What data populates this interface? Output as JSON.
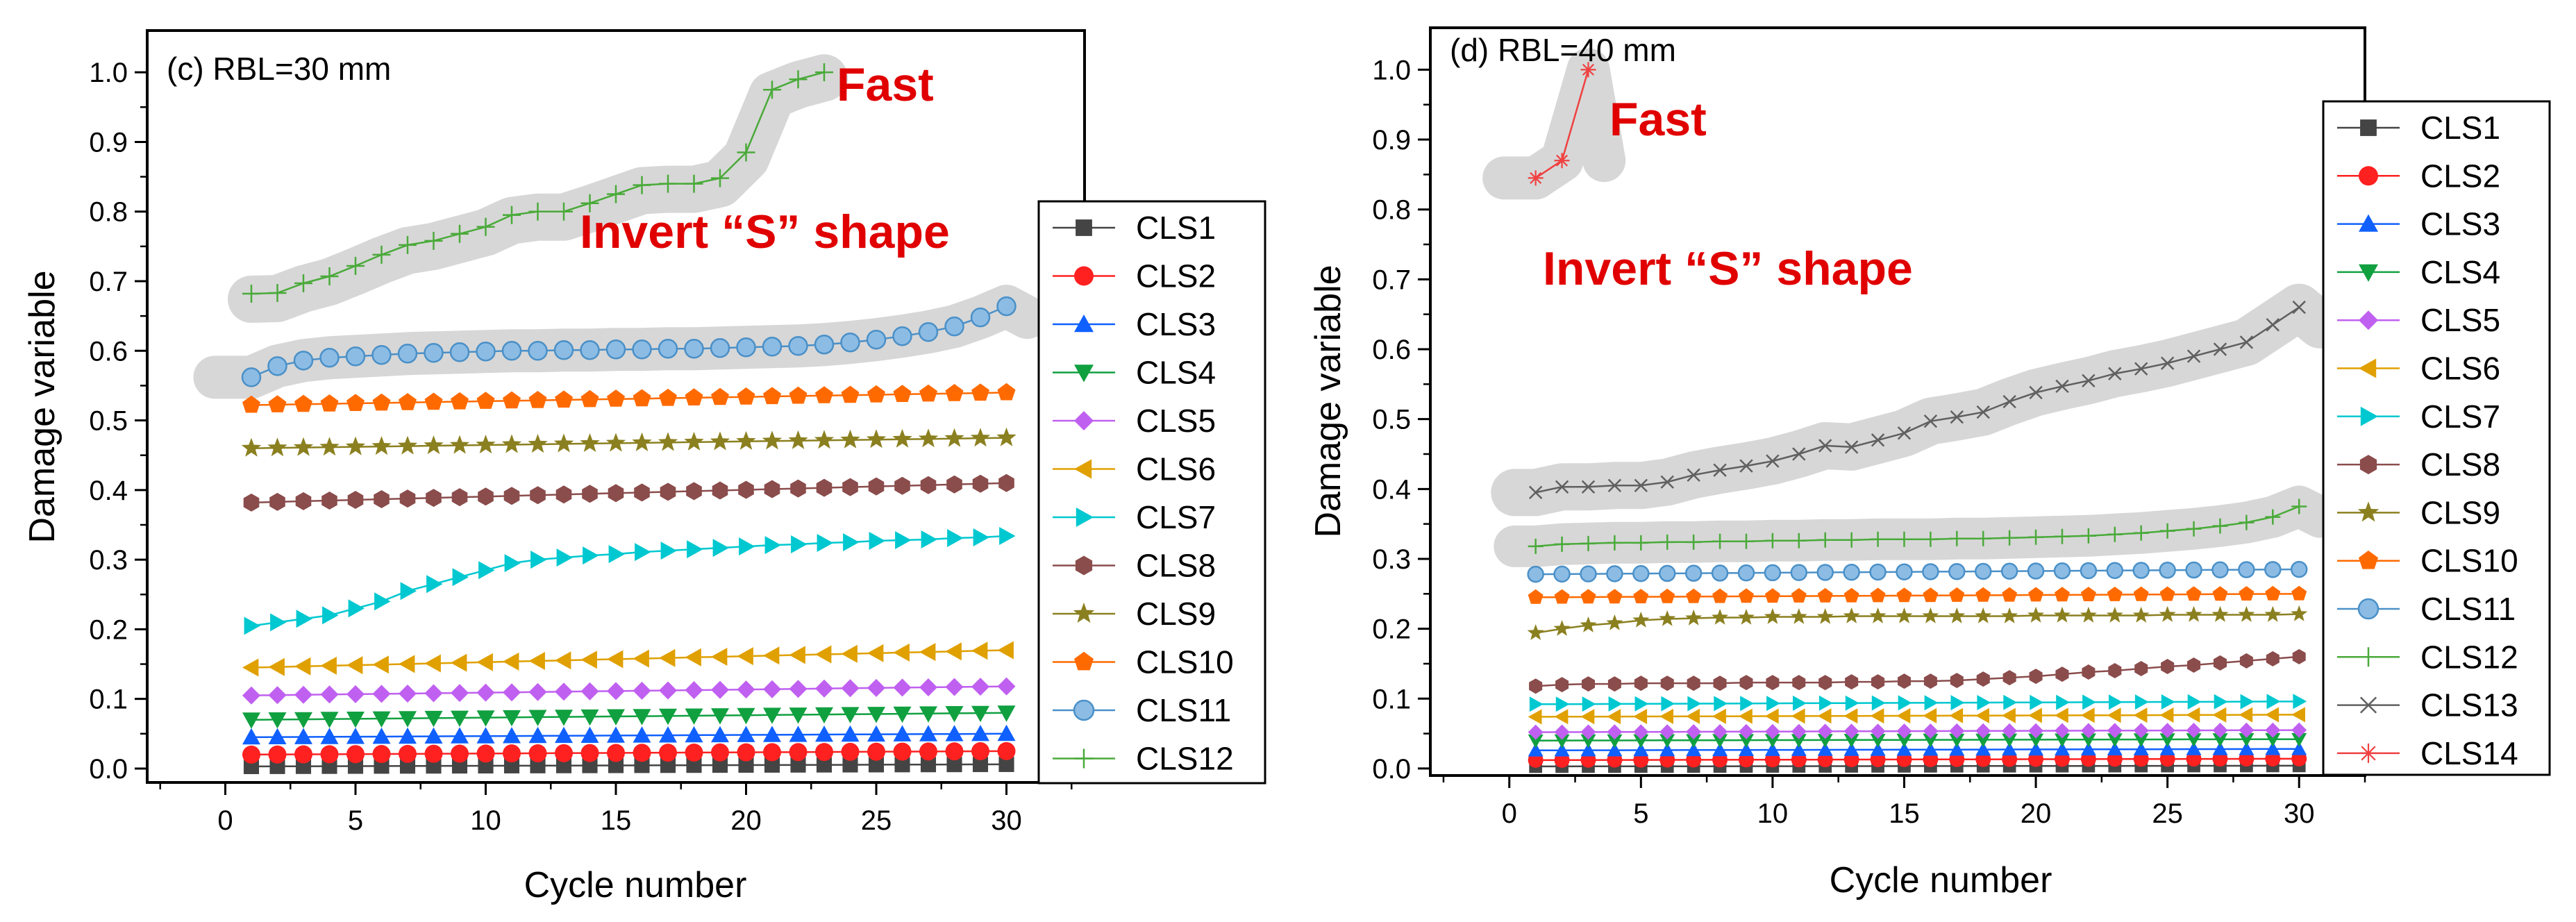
{
  "panels": [
    {
      "panel_text": "(c) RBL=30 mm",
      "annotation_fast": "Fast",
      "annotation_invert": "Invert “S” shape"
    },
    {
      "panel_text": "(d) RBL=40 mm",
      "annotation_fast": "Fast",
      "annotation_invert": "Invert “S” shape"
    }
  ],
  "chart_data": [
    {
      "type": "line",
      "title": "(c) RBL=30 mm",
      "xlabel": "Cycle number",
      "ylabel": "Damage variable",
      "xlim": [
        -3,
        33
      ],
      "ylim": [
        -0.02,
        1.06
      ],
      "xticks": [
        0,
        5,
        10,
        15,
        20,
        25,
        30
      ],
      "yticks": [
        0.0,
        0.1,
        0.2,
        0.3,
        0.4,
        0.5,
        0.6,
        0.7,
        0.8,
        0.9,
        1.0
      ],
      "legend_position": "right",
      "series": [
        {
          "name": "CLS1",
          "marker": "square",
          "color": "#444444",
          "start": 0.003,
          "end": 0.006
        },
        {
          "name": "CLS2",
          "marker": "circle",
          "color": "#ff2020",
          "start": 0.02,
          "end": 0.025
        },
        {
          "name": "CLS3",
          "marker": "triangle-up",
          "color": "#1060ff",
          "start": 0.045,
          "end": 0.05
        },
        {
          "name": "CLS4",
          "marker": "triangle-down",
          "color": "#10a040",
          "start": 0.07,
          "end": 0.08
        },
        {
          "name": "CLS5",
          "marker": "diamond",
          "color": "#c060f0",
          "start": 0.105,
          "end": 0.118
        },
        {
          "name": "CLS6",
          "marker": "triangle-left",
          "color": "#e0a000",
          "start": 0.145,
          "end": 0.17
        },
        {
          "name": "CLS7",
          "marker": "triangle-right",
          "color": "#00c8d0",
          "values": [
            0.205,
            0.21,
            0.215,
            0.22,
            0.23,
            0.24,
            0.255,
            0.265,
            0.275,
            0.285,
            0.295,
            0.3,
            0.303,
            0.306,
            0.308,
            0.311,
            0.313,
            0.315,
            0.317,
            0.319,
            0.321,
            0.322,
            0.324,
            0.325,
            0.327,
            0.328,
            0.329,
            0.331,
            0.332,
            0.334
          ]
        },
        {
          "name": "CLS8",
          "marker": "hexagon",
          "color": "#8b4c4c",
          "start": 0.382,
          "end": 0.41
        },
        {
          "name": "CLS9",
          "marker": "star",
          "color": "#8b8020",
          "start": 0.46,
          "end": 0.475
        },
        {
          "name": "CLS10",
          "marker": "pentagon",
          "color": "#ff6a00",
          "start": 0.522,
          "end": 0.54
        },
        {
          "name": "CLS11",
          "marker": "sphere",
          "color": "#4a90c8",
          "values": [
            0.562,
            0.578,
            0.586,
            0.59,
            0.592,
            0.594,
            0.596,
            0.597,
            0.598,
            0.599,
            0.6,
            0.6,
            0.601,
            0.601,
            0.602,
            0.602,
            0.603,
            0.603,
            0.604,
            0.605,
            0.606,
            0.607,
            0.609,
            0.612,
            0.616,
            0.621,
            0.627,
            0.635,
            0.648,
            0.664
          ]
        },
        {
          "name": "CLS12",
          "marker": "plus",
          "color": "#4aaa3a",
          "values": [
            0.682,
            0.683,
            0.697,
            0.707,
            0.722,
            0.738,
            0.752,
            0.758,
            0.768,
            0.778,
            0.795,
            0.8,
            0.8,
            0.812,
            0.825,
            0.838,
            0.84,
            0.84,
            0.848,
            0.885,
            0.975,
            0.99,
            1.0
          ]
        }
      ]
    },
    {
      "type": "line",
      "title": "(d) RBL=40 mm",
      "xlabel": "Cycle number",
      "ylabel": "Damage variable",
      "xlim": [
        -3,
        32.5
      ],
      "ylim": [
        -0.01,
        1.06
      ],
      "xticks": [
        0,
        5,
        10,
        15,
        20,
        25,
        30
      ],
      "yticks": [
        0.0,
        0.1,
        0.2,
        0.3,
        0.4,
        0.5,
        0.6,
        0.7,
        0.8,
        0.9,
        1.0
      ],
      "legend_position": "right",
      "series": [
        {
          "name": "CLS1",
          "marker": "square",
          "color": "#444444",
          "start": 0.003,
          "end": 0.004
        },
        {
          "name": "CLS2",
          "marker": "circle",
          "color": "#ff2020",
          "start": 0.012,
          "end": 0.014
        },
        {
          "name": "CLS3",
          "marker": "triangle-up",
          "color": "#1060ff",
          "start": 0.026,
          "end": 0.028
        },
        {
          "name": "CLS4",
          "marker": "triangle-down",
          "color": "#10a040",
          "start": 0.04,
          "end": 0.042
        },
        {
          "name": "CLS5",
          "marker": "diamond",
          "color": "#c060f0",
          "start": 0.052,
          "end": 0.055
        },
        {
          "name": "CLS6",
          "marker": "triangle-left",
          "color": "#e0a000",
          "start": 0.074,
          "end": 0.077
        },
        {
          "name": "CLS7",
          "marker": "triangle-right",
          "color": "#00c8d0",
          "start": 0.092,
          "end": 0.096
        },
        {
          "name": "CLS8",
          "marker": "hexagon",
          "color": "#8b4c4c",
          "values": [
            0.118,
            0.12,
            0.121,
            0.121,
            0.122,
            0.122,
            0.122,
            0.122,
            0.123,
            0.123,
            0.123,
            0.123,
            0.124,
            0.124,
            0.125,
            0.125,
            0.126,
            0.128,
            0.13,
            0.132,
            0.135,
            0.138,
            0.14,
            0.143,
            0.146,
            0.148,
            0.151,
            0.154,
            0.157,
            0.16
          ]
        },
        {
          "name": "CLS9",
          "marker": "star",
          "color": "#8b8020",
          "values": [
            0.194,
            0.2,
            0.205,
            0.208,
            0.212,
            0.214,
            0.215,
            0.216,
            0.216,
            0.217,
            0.217,
            0.217,
            0.218,
            0.218,
            0.218,
            0.218,
            0.218,
            0.218,
            0.218,
            0.219,
            0.219,
            0.219,
            0.219,
            0.219,
            0.22,
            0.22,
            0.22,
            0.22,
            0.22,
            0.221
          ]
        },
        {
          "name": "CLS10",
          "marker": "pentagon",
          "color": "#ff6a00",
          "start": 0.245,
          "end": 0.25
        },
        {
          "name": "CLS11",
          "marker": "sphere",
          "color": "#4a90c8",
          "start": 0.278,
          "end": 0.285
        },
        {
          "name": "CLS12",
          "marker": "plus",
          "color": "#4aaa3a",
          "values": [
            0.318,
            0.321,
            0.322,
            0.323,
            0.323,
            0.324,
            0.324,
            0.325,
            0.325,
            0.326,
            0.326,
            0.327,
            0.327,
            0.328,
            0.328,
            0.328,
            0.329,
            0.329,
            0.33,
            0.331,
            0.332,
            0.333,
            0.335,
            0.337,
            0.34,
            0.343,
            0.347,
            0.352,
            0.36,
            0.375
          ]
        },
        {
          "name": "CLS13",
          "marker": "cross",
          "color": "#606060",
          "values": [
            0.395,
            0.403,
            0.403,
            0.405,
            0.405,
            0.41,
            0.42,
            0.427,
            0.433,
            0.44,
            0.45,
            0.462,
            0.46,
            0.47,
            0.48,
            0.497,
            0.503,
            0.51,
            0.525,
            0.538,
            0.547,
            0.555,
            0.565,
            0.572,
            0.58,
            0.59,
            0.6,
            0.61,
            0.635,
            0.66
          ]
        },
        {
          "name": "CLS14",
          "marker": "asterisk",
          "color": "#f04040",
          "values": [
            0.845,
            0.87,
            1.0
          ]
        }
      ]
    }
  ]
}
